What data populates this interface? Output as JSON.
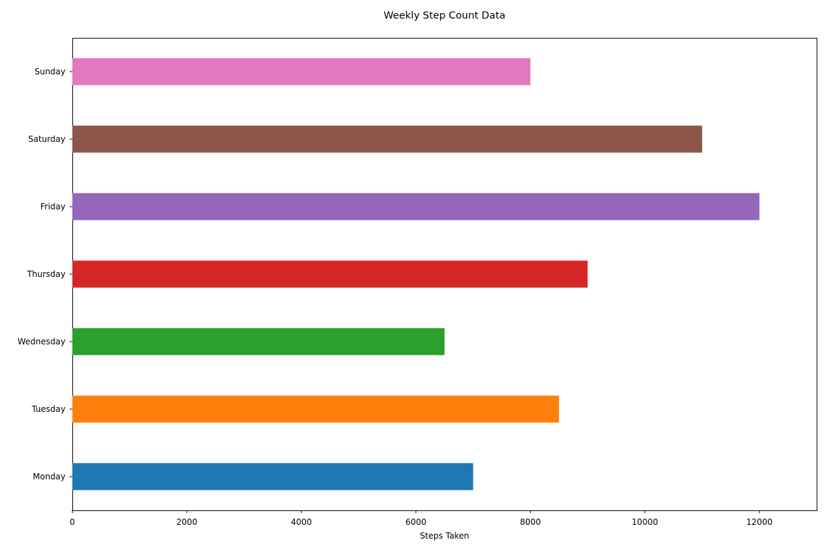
{
  "chart_data": {
    "type": "bar",
    "orientation": "horizontal",
    "title": "Weekly Step Count Data",
    "xlabel": "Steps Taken",
    "ylabel": "",
    "categories": [
      "Monday",
      "Tuesday",
      "Wednesday",
      "Thursday",
      "Friday",
      "Saturday",
      "Sunday"
    ],
    "values": [
      7000,
      8500,
      6500,
      9000,
      12000,
      11000,
      8000
    ],
    "colors": [
      "#1f77b4",
      "#ff7f0e",
      "#2ca02c",
      "#d62728",
      "#9467bd",
      "#8c564b",
      "#e377c2"
    ],
    "xlim": [
      0,
      13000
    ],
    "xticks": [
      0,
      2000,
      4000,
      6000,
      8000,
      10000,
      12000
    ],
    "grid": false,
    "legend": "none"
  }
}
